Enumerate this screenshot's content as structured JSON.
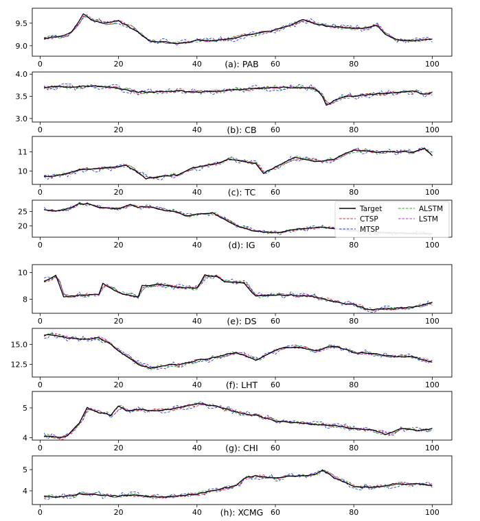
{
  "figure": {
    "legend": [
      {
        "name": "Target",
        "color": "#000000",
        "dash": "solid"
      },
      {
        "name": "CTSP",
        "color": "#d62728",
        "dash": "dashed"
      },
      {
        "name": "MTSP",
        "color": "#1f3fd9",
        "dash": "dashed"
      },
      {
        "name": "ALSTM",
        "color": "#2ca02c",
        "dash": "dashed"
      },
      {
        "name": "LSTM",
        "color": "#b52dc2",
        "dash": "dashed"
      }
    ]
  },
  "chart_data": [
    {
      "type": "line",
      "title": "(a): PAB",
      "xlim": [
        -2,
        105
      ],
      "ylim": [
        8.77,
        9.83
      ],
      "xticks": [
        0,
        20,
        40,
        60,
        80,
        100
      ],
      "yticks": [
        9.0,
        9.5
      ],
      "ytick_labels": [
        "9.0",
        "9.5"
      ],
      "target_anchors": [
        [
          1,
          9.15
        ],
        [
          3,
          9.2
        ],
        [
          6,
          9.22
        ],
        [
          8,
          9.3
        ],
        [
          11,
          9.7
        ],
        [
          13,
          9.58
        ],
        [
          16,
          9.5
        ],
        [
          20,
          9.55
        ],
        [
          22,
          9.45
        ],
        [
          25,
          9.3
        ],
        [
          28,
          9.1
        ],
        [
          32,
          9.08
        ],
        [
          36,
          9.05
        ],
        [
          40,
          9.12
        ],
        [
          44,
          9.12
        ],
        [
          48,
          9.15
        ],
        [
          52,
          9.22
        ],
        [
          56,
          9.28
        ],
        [
          60,
          9.35
        ],
        [
          64,
          9.45
        ],
        [
          67,
          9.58
        ],
        [
          70,
          9.48
        ],
        [
          74,
          9.42
        ],
        [
          78,
          9.4
        ],
        [
          82,
          9.38
        ],
        [
          86,
          9.45
        ],
        [
          88,
          9.25
        ],
        [
          91,
          9.13
        ],
        [
          95,
          9.12
        ],
        [
          100,
          9.15
        ]
      ]
    },
    {
      "type": "line",
      "title": "(b): CB",
      "xlim": [
        -2,
        105
      ],
      "ylim": [
        2.92,
        4.05
      ],
      "xticks": [
        0,
        20,
        40,
        60,
        80,
        100
      ],
      "yticks": [
        3.0,
        3.5,
        4.0
      ],
      "ytick_labels": [
        "3.0",
        "3.5",
        "4.0"
      ],
      "target_anchors": [
        [
          1,
          3.7
        ],
        [
          5,
          3.72
        ],
        [
          10,
          3.72
        ],
        [
          15,
          3.73
        ],
        [
          20,
          3.68
        ],
        [
          25,
          3.6
        ],
        [
          30,
          3.6
        ],
        [
          36,
          3.62
        ],
        [
          40,
          3.6
        ],
        [
          45,
          3.62
        ],
        [
          50,
          3.65
        ],
        [
          55,
          3.68
        ],
        [
          60,
          3.7
        ],
        [
          65,
          3.7
        ],
        [
          70,
          3.68
        ],
        [
          72,
          3.5
        ],
        [
          73,
          3.3
        ],
        [
          75,
          3.4
        ],
        [
          78,
          3.5
        ],
        [
          80,
          3.5
        ],
        [
          85,
          3.55
        ],
        [
          90,
          3.58
        ],
        [
          95,
          3.62
        ],
        [
          98,
          3.55
        ],
        [
          100,
          3.58
        ]
      ]
    },
    {
      "type": "line",
      "title": "(c): TC",
      "xlim": [
        -2,
        105
      ],
      "ylim": [
        9.3,
        11.8
      ],
      "xticks": [
        0,
        20,
        40,
        60,
        80,
        100
      ],
      "yticks": [
        10,
        11
      ],
      "ytick_labels": [
        "10",
        "11"
      ],
      "target_anchors": [
        [
          1,
          9.7
        ],
        [
          5,
          9.8
        ],
        [
          10,
          10.05
        ],
        [
          15,
          10.15
        ],
        [
          20,
          10.2
        ],
        [
          22,
          10.3
        ],
        [
          25,
          9.9
        ],
        [
          27,
          9.6
        ],
        [
          30,
          9.7
        ],
        [
          35,
          9.8
        ],
        [
          38,
          10.1
        ],
        [
          40,
          10.2
        ],
        [
          45,
          10.4
        ],
        [
          48,
          10.6
        ],
        [
          52,
          10.5
        ],
        [
          55,
          10.4
        ],
        [
          57,
          9.9
        ],
        [
          60,
          10.2
        ],
        [
          65,
          10.7
        ],
        [
          70,
          10.5
        ],
        [
          75,
          10.6
        ],
        [
          78,
          10.9
        ],
        [
          80,
          11.1
        ],
        [
          85,
          11.0
        ],
        [
          90,
          11.0
        ],
        [
          95,
          11.0
        ],
        [
          98,
          11.2
        ],
        [
          100,
          10.8
        ]
      ]
    },
    {
      "type": "line",
      "title": "(d): IG",
      "xlim": [
        -2,
        105
      ],
      "ylim": [
        16.0,
        29.0
      ],
      "xticks": [
        0,
        20,
        40,
        60,
        80,
        100
      ],
      "yticks": [
        20,
        25
      ],
      "ytick_labels": [
        "20",
        "25"
      ],
      "target_anchors": [
        [
          1,
          25.5
        ],
        [
          5,
          25.3
        ],
        [
          8,
          26.5
        ],
        [
          10,
          27.8
        ],
        [
          13,
          27.5
        ],
        [
          15,
          26.5
        ],
        [
          20,
          26.0
        ],
        [
          23,
          27.5
        ],
        [
          25,
          26.5
        ],
        [
          28,
          26.8
        ],
        [
          31,
          25.5
        ],
        [
          35,
          24.8
        ],
        [
          37,
          23.5
        ],
        [
          40,
          24.0
        ],
        [
          44,
          24.5
        ],
        [
          46,
          23.0
        ],
        [
          48,
          21.5
        ],
        [
          51,
          19.5
        ],
        [
          54,
          18.3
        ],
        [
          57,
          17.8
        ],
        [
          60,
          17.5
        ],
        [
          63,
          18.3
        ],
        [
          67,
          19.0
        ],
        [
          72,
          19.5
        ],
        [
          76,
          19.0
        ],
        [
          80,
          18.3
        ],
        [
          85,
          17.8
        ],
        [
          90,
          17.5
        ],
        [
          95,
          17.3
        ],
        [
          100,
          17.2
        ]
      ]
    },
    {
      "type": "line",
      "title": "(e): DS",
      "xlim": [
        -2,
        105
      ],
      "ylim": [
        6.95,
        10.6
      ],
      "xticks": [
        0,
        20,
        40,
        60,
        80,
        100
      ],
      "yticks": [
        8,
        10
      ],
      "ytick_labels": [
        "8",
        "10"
      ],
      "target_anchors": [
        [
          1,
          9.3
        ],
        [
          4,
          9.8
        ],
        [
          6,
          8.2
        ],
        [
          10,
          8.3
        ],
        [
          15,
          8.4
        ],
        [
          16,
          9.2
        ],
        [
          18,
          8.8
        ],
        [
          22,
          8.3
        ],
        [
          25,
          8.2
        ],
        [
          26,
          9.0
        ],
        [
          28,
          9.0
        ],
        [
          30,
          9.1
        ],
        [
          35,
          8.9
        ],
        [
          40,
          8.8
        ],
        [
          42,
          9.8
        ],
        [
          45,
          9.7
        ],
        [
          47,
          9.3
        ],
        [
          52,
          9.2
        ],
        [
          55,
          8.2
        ],
        [
          60,
          8.3
        ],
        [
          65,
          8.3
        ],
        [
          70,
          8.2
        ],
        [
          75,
          7.8
        ],
        [
          80,
          7.6
        ],
        [
          84,
          7.2
        ],
        [
          90,
          7.3
        ],
        [
          95,
          7.4
        ],
        [
          100,
          7.8
        ]
      ]
    },
    {
      "type": "line",
      "title": "(f): LHT",
      "xlim": [
        -2,
        105
      ],
      "ylim": [
        10.9,
        17.0
      ],
      "xticks": [
        0,
        20,
        40,
        60,
        80,
        100
      ],
      "yticks": [
        12.5,
        15.0
      ],
      "ytick_labels": [
        "12.5",
        "15.0"
      ],
      "target_anchors": [
        [
          1,
          16.2
        ],
        [
          5,
          16.0
        ],
        [
          10,
          15.6
        ],
        [
          15,
          15.8
        ],
        [
          18,
          15.0
        ],
        [
          21,
          13.8
        ],
        [
          25,
          12.5
        ],
        [
          28,
          12.0
        ],
        [
          32,
          12.4
        ],
        [
          36,
          12.5
        ],
        [
          40,
          13.0
        ],
        [
          45,
          13.4
        ],
        [
          50,
          14.0
        ],
        [
          55,
          13.0
        ],
        [
          58,
          13.8
        ],
        [
          62,
          14.6
        ],
        [
          66,
          14.6
        ],
        [
          70,
          14.2
        ],
        [
          75,
          14.8
        ],
        [
          80,
          14.0
        ],
        [
          85,
          13.8
        ],
        [
          90,
          13.5
        ],
        [
          95,
          13.4
        ],
        [
          100,
          12.8
        ]
      ]
    },
    {
      "type": "line",
      "title": "(g): CHI",
      "xlim": [
        -2,
        105
      ],
      "ylim": [
        3.92,
        5.55
      ],
      "xticks": [
        0,
        20,
        40,
        60,
        80,
        100
      ],
      "yticks": [
        4,
        5
      ],
      "ytick_labels": [
        "4",
        "5"
      ],
      "target_anchors": [
        [
          1,
          4.05
        ],
        [
          4,
          4.02
        ],
        [
          7,
          4.05
        ],
        [
          10,
          4.5
        ],
        [
          12,
          5.0
        ],
        [
          15,
          4.85
        ],
        [
          18,
          4.75
        ],
        [
          20,
          5.05
        ],
        [
          22,
          4.9
        ],
        [
          25,
          4.95
        ],
        [
          30,
          4.9
        ],
        [
          35,
          5.0
        ],
        [
          40,
          5.15
        ],
        [
          45,
          5.05
        ],
        [
          50,
          4.85
        ],
        [
          55,
          4.75
        ],
        [
          60,
          4.55
        ],
        [
          65,
          4.5
        ],
        [
          70,
          4.45
        ],
        [
          75,
          4.4
        ],
        [
          80,
          4.3
        ],
        [
          85,
          4.25
        ],
        [
          88,
          4.1
        ],
        [
          92,
          4.3
        ],
        [
          96,
          4.25
        ],
        [
          100,
          4.3
        ]
      ]
    },
    {
      "type": "line",
      "title": "(h): XCMG",
      "xlim": [
        -2,
        105
      ],
      "ylim": [
        3.35,
        5.65
      ],
      "xticks": [
        0,
        20,
        40,
        60,
        80,
        100
      ],
      "yticks": [
        4,
        5
      ],
      "ytick_labels": [
        "4",
        "5"
      ],
      "target_anchors": [
        [
          1,
          3.75
        ],
        [
          5,
          3.7
        ],
        [
          10,
          3.85
        ],
        [
          15,
          3.8
        ],
        [
          20,
          3.75
        ],
        [
          25,
          3.8
        ],
        [
          30,
          3.7
        ],
        [
          35,
          3.75
        ],
        [
          40,
          3.85
        ],
        [
          45,
          4.05
        ],
        [
          50,
          4.25
        ],
        [
          52,
          4.6
        ],
        [
          55,
          4.7
        ],
        [
          60,
          4.6
        ],
        [
          65,
          4.7
        ],
        [
          70,
          4.75
        ],
        [
          72,
          5.0
        ],
        [
          75,
          4.6
        ],
        [
          78,
          4.4
        ],
        [
          80,
          4.2
        ],
        [
          85,
          4.15
        ],
        [
          90,
          4.3
        ],
        [
          95,
          4.35
        ],
        [
          100,
          4.25
        ]
      ]
    }
  ]
}
